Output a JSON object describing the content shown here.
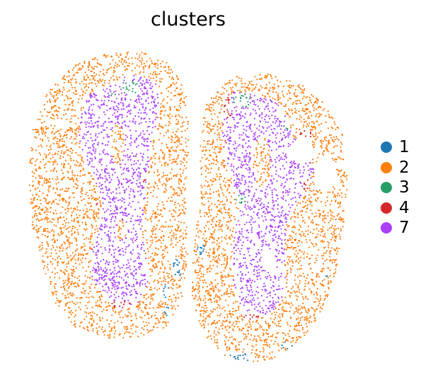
{
  "chart_data": {
    "type": "scatter",
    "title": "clusters",
    "xlabel": "",
    "ylabel": "",
    "grid": false,
    "axes_visible": false,
    "legend_position": "right",
    "series": [
      {
        "name": "1",
        "color": "#1f77b4"
      },
      {
        "name": "2",
        "color": "#ff7f0e"
      },
      {
        "name": "3",
        "color": "#279e68"
      },
      {
        "name": "4",
        "color": "#d62728"
      },
      {
        "name": "7",
        "color": "#aa40fc"
      }
    ]
  }
}
